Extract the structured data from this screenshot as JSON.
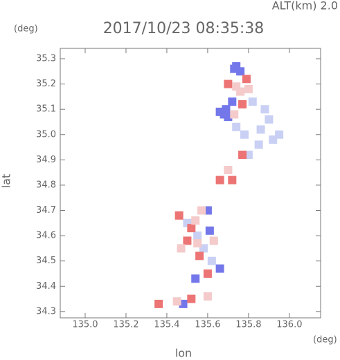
{
  "chart_data": {
    "type": "scatter",
    "annotation": "ALT(km)  2.0",
    "title": "2017/10/23 08:35:38",
    "y_unit": "(deg)",
    "x_unit": "(deg)",
    "x_label": "lon",
    "y_label": "lat",
    "xlim": [
      134.878,
      136.153
    ],
    "ylim": [
      34.275,
      35.341
    ],
    "xticks": [
      {
        "value": 135,
        "label": "135.0"
      },
      135.2,
      135.4,
      135.6,
      135.8,
      {
        "value": 136,
        "label": "136.0"
      }
    ],
    "yticks": [
      34.3,
      34.4,
      34.5,
      34.6,
      34.7,
      34.8,
      34.9,
      {
        "value": 35,
        "label": "35.0"
      },
      35.1,
      35.2,
      35.3
    ],
    "series": [
      {
        "color": "#7377ea",
        "x": [
          135.74,
          135.73,
          135.76,
          135.69,
          135.68,
          135.7,
          135.66,
          135.72,
          135.61,
          135.66,
          135.54,
          135.6,
          135.48
        ],
        "y": [
          35.27,
          35.26,
          35.25,
          35.1,
          35.08,
          35.07,
          35.09,
          35.13,
          34.62,
          34.47,
          34.43,
          34.7,
          34.33
        ]
      },
      {
        "color": "#c9d0f4",
        "x": [
          135.88,
          135.9,
          135.86,
          135.92,
          135.85,
          135.82,
          135.78,
          135.74,
          135.95,
          135.8,
          135.62,
          135.55,
          135.5,
          135.58
        ],
        "y": [
          35.1,
          35.06,
          35.02,
          34.98,
          34.96,
          35.13,
          35.0,
          35.03,
          35.0,
          34.92,
          34.5,
          34.6,
          34.65,
          34.55
        ]
      },
      {
        "color": "#ec7474",
        "x": [
          135.79,
          135.7,
          135.77,
          135.66,
          135.72,
          135.52,
          135.5,
          135.56,
          135.46,
          135.6,
          135.36,
          135.52,
          135.77
        ],
        "y": [
          35.22,
          35.2,
          35.12,
          34.82,
          34.82,
          34.63,
          34.58,
          34.52,
          34.68,
          34.45,
          34.33,
          34.35,
          34.92
        ]
      },
      {
        "color": "#f4caca",
        "x": [
          135.76,
          135.74,
          135.8,
          135.73,
          135.57,
          135.54,
          135.55,
          135.63,
          135.47,
          135.7,
          135.6,
          135.45
        ],
        "y": [
          35.17,
          35.19,
          35.18,
          35.08,
          34.7,
          34.66,
          34.57,
          34.58,
          34.55,
          34.86,
          34.36,
          34.34
        ]
      }
    ]
  }
}
